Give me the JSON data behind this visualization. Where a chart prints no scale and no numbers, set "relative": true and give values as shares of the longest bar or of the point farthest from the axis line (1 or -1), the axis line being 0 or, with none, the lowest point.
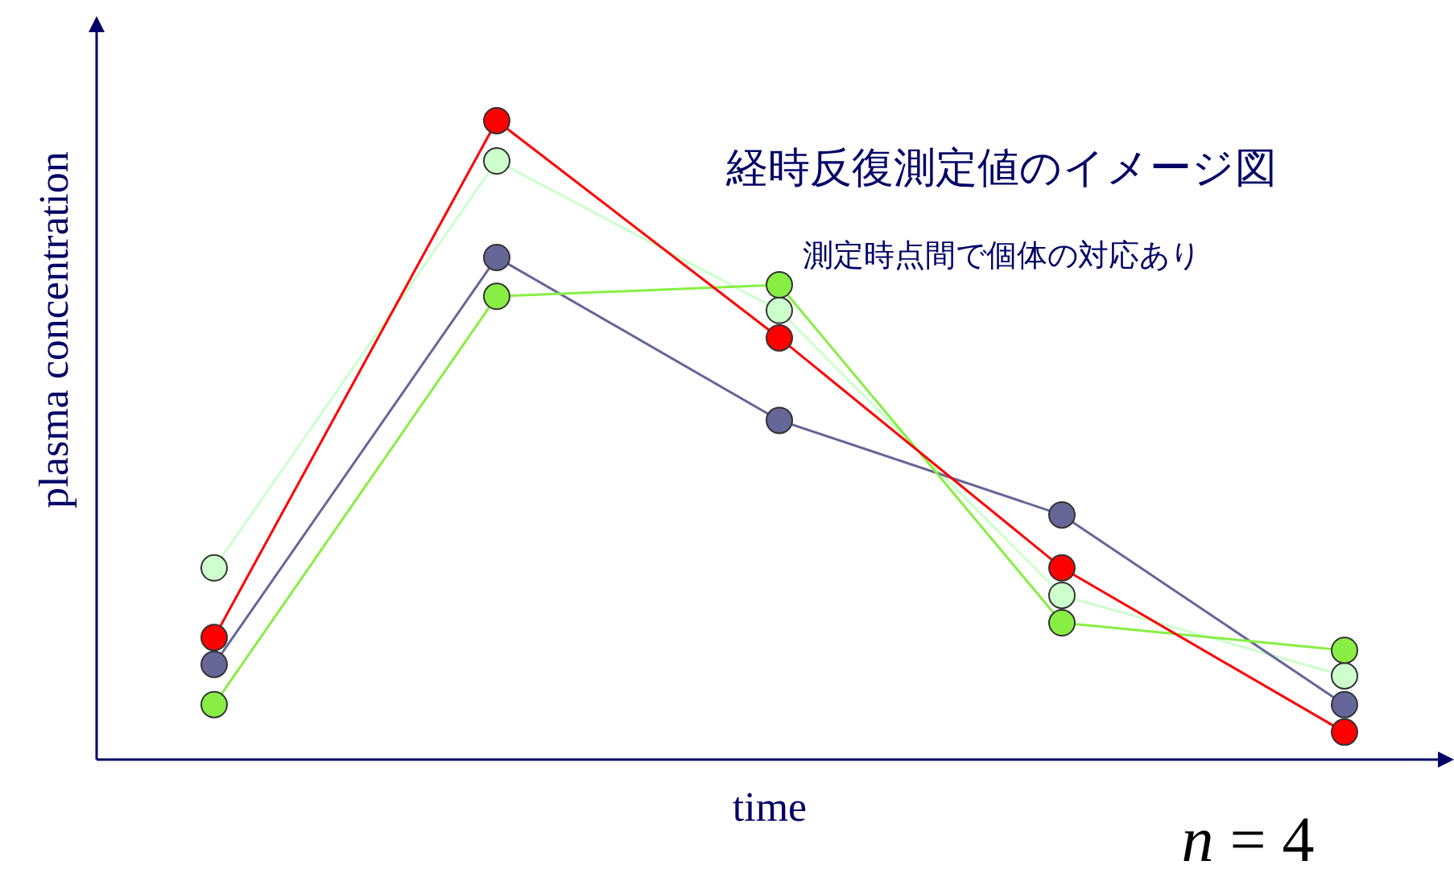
{
  "chart_data": {
    "type": "line",
    "title": "経時反復測定値のイメージ図",
    "subtitle": "測定時点間で個体の対応あり",
    "xlabel": "time",
    "ylabel": "plasma concentration",
    "annotations": [
      "n = 4"
    ],
    "relative": true,
    "marker": "circle",
    "categories": [
      null,
      null,
      null,
      null,
      null
    ],
    "series": [
      {
        "color": "#ccffcc",
        "values": [
          0.3,
          0.937,
          0.703,
          0.257,
          0.131
        ]
      },
      {
        "color": "#666699",
        "values": [
          0.149,
          0.786,
          0.531,
          0.383,
          0.086
        ]
      },
      {
        "color": "#88ee44",
        "values": [
          0.086,
          0.725,
          0.743,
          0.214,
          0.171
        ]
      },
      {
        "color": "#ff0000",
        "values": [
          0.191,
          1,
          0.66,
          0.3,
          0.043
        ]
      }
    ]
  }
}
